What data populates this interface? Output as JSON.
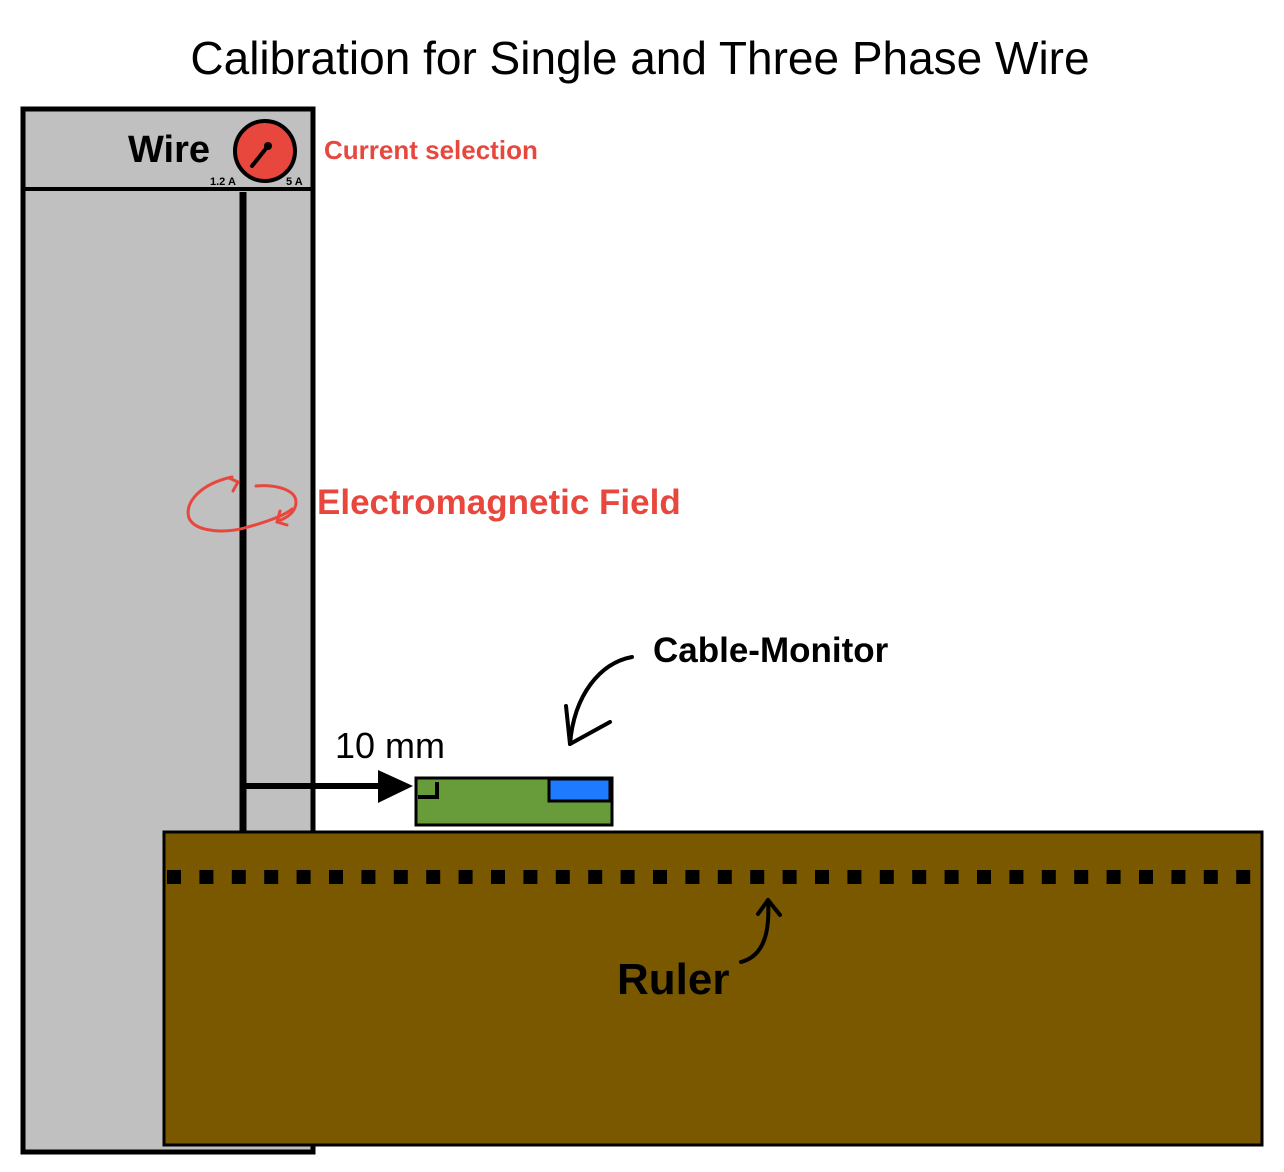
{
  "title": "Calibration for Single and Three Phase Wire",
  "wire": {
    "label": "Wire",
    "dial": {
      "min_label": "1.2 A",
      "max_label": "5 A",
      "annotation": "Current selection"
    }
  },
  "field": {
    "label": "Electromagnetic Field"
  },
  "distance": {
    "label": "10 mm"
  },
  "device": {
    "label": "Cable-Monitor"
  },
  "ruler": {
    "label": "Ruler",
    "tick_count": 34
  },
  "colors": {
    "wire_panel": "#c0c0c0",
    "accent_red": "#e8473e",
    "device_green": "#689c3a",
    "device_blue": "#1e7bff",
    "ruler_brown": "#7a5800",
    "outline": "#000000"
  }
}
